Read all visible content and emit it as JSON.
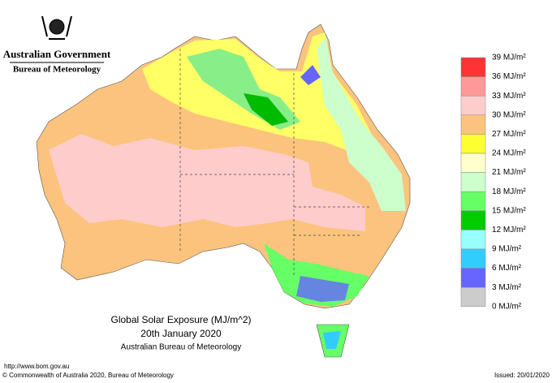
{
  "header": {
    "government": "Australian Government",
    "bureau": "Bureau of Meteorology"
  },
  "map": {
    "title": "Global Solar Exposure (MJ/m^2)",
    "date": "20th January 2020",
    "source": "Australian Bureau of Meteorology"
  },
  "legend": {
    "labels": [
      "39 MJ/m²",
      "36 MJ/m²",
      "33 MJ/m²",
      "30 MJ/m²",
      "27 MJ/m²",
      "24 MJ/m²",
      "21 MJ/m²",
      "18 MJ/m²",
      "15 MJ/m²",
      "12 MJ/m²",
      "9 MJ/m²",
      "6 MJ/m²",
      "3 MJ/m²",
      "0 MJ/m²"
    ],
    "colors": [
      "#ff3333",
      "#ff9999",
      "#ffcccc",
      "#fbc37d",
      "#ffff33",
      "#ffffcc",
      "#ccffcc",
      "#66ff66",
      "#00cc00",
      "#99ffff",
      "#33ccff",
      "#6666ff",
      "#cccccc"
    ]
  },
  "footer": {
    "url": "http://www.bom.gov.au",
    "copyright": "© Commonwealth of Australia 2020, Bureau of Meteorology",
    "issued": "Issued: 20/01/2020"
  }
}
